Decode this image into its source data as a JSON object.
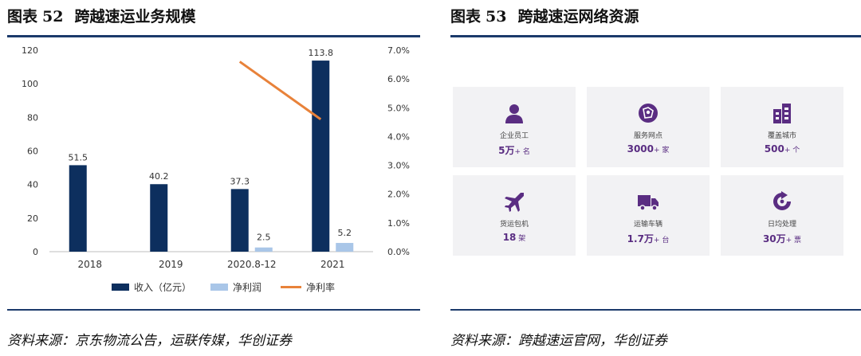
{
  "left_panel": {
    "figure_label": "图表",
    "figure_number": "52",
    "figure_title": "跨越速运业务规模",
    "source": "资料来源：京东物流公告，运联传媒，华创证券"
  },
  "right_panel": {
    "figure_label": "图表",
    "figure_number": "53",
    "figure_title": "跨越速运网络资源",
    "source": "资料来源：跨越速运官网，华创证券",
    "cards": [
      {
        "icon": "person-icon",
        "label": "企业员工",
        "value": "5万",
        "unit": "+ 名"
      },
      {
        "icon": "network-icon",
        "label": "服务网点",
        "value": "3000",
        "unit": "+ 家"
      },
      {
        "icon": "buildings-icon",
        "label": "覆盖城市",
        "value": "500",
        "unit": "+ 个"
      },
      {
        "icon": "airplane-icon",
        "label": "货运包机",
        "value": "18",
        "unit": " 架"
      },
      {
        "icon": "truck-icon",
        "label": "运输车辆",
        "value": "1.7万",
        "unit": "+ 台"
      },
      {
        "icon": "refresh-icon",
        "label": "日均处理",
        "value": "30万",
        "unit": "+ 票"
      }
    ],
    "accent_color": "#5a2d82",
    "card_bg": "#f2f2f4"
  },
  "chart_data": {
    "type": "bar",
    "categories": [
      "2018",
      "2019",
      "2020.8-12",
      "2021"
    ],
    "series": [
      {
        "name": "收入（亿元）",
        "type": "bar",
        "axis": "left",
        "color": "#0d2f5e",
        "values": [
          51.5,
          40.2,
          37.3,
          113.8
        ]
      },
      {
        "name": "净利润",
        "type": "bar",
        "axis": "left",
        "color": "#a9c6e8",
        "values": [
          null,
          null,
          2.5,
          5.2
        ]
      },
      {
        "name": "净利率",
        "type": "line",
        "axis": "right",
        "color": "#e8823a",
        "values": [
          null,
          null,
          6.6,
          4.6
        ]
      }
    ],
    "data_labels": {
      "revenue": [
        "51.5",
        "40.2",
        "37.3",
        "113.8"
      ],
      "net_profit": [
        "",
        "",
        "2.5",
        "5.2"
      ]
    },
    "y_left": {
      "min": 0,
      "max": 120,
      "ticks": [
        "0",
        "20",
        "40",
        "60",
        "80",
        "100",
        "120"
      ]
    },
    "y_right": {
      "min": 0,
      "max": 7.0,
      "ticks": [
        "0.0%",
        "1.0%",
        "2.0%",
        "3.0%",
        "4.0%",
        "5.0%",
        "6.0%",
        "7.0%"
      ]
    },
    "grid": false,
    "legend": "bottom"
  }
}
